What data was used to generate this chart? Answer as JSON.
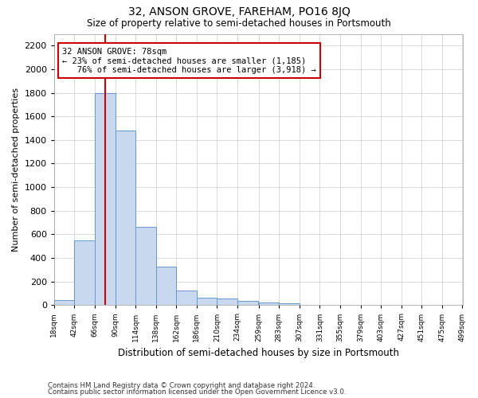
{
  "title": "32, ANSON GROVE, FAREHAM, PO16 8JQ",
  "subtitle": "Size of property relative to semi-detached houses in Portsmouth",
  "xlabel": "Distribution of semi-detached houses by size in Portsmouth",
  "ylabel": "Number of semi-detached properties",
  "footnote1": "Contains HM Land Registry data © Crown copyright and database right 2024.",
  "footnote2": "Contains public sector information licensed under the Open Government Licence v3.0.",
  "property_label": "32 ANSON GROVE: 78sqm",
  "smaller_pct": "23%",
  "smaller_count": "1,185",
  "larger_pct": "76%",
  "larger_count": "3,918",
  "property_size_sqm": 78,
  "bin_starts": [
    18,
    42,
    66,
    90,
    114,
    138,
    162,
    186,
    210,
    234,
    259,
    283,
    307,
    331,
    355,
    379,
    403,
    427,
    451,
    475
  ],
  "bin_width": 24,
  "bar_heights": [
    40,
    550,
    1800,
    1480,
    660,
    325,
    120,
    65,
    55,
    35,
    20,
    15,
    5,
    5,
    2,
    2,
    2,
    2,
    1,
    1
  ],
  "bar_color": "#c8d9ef",
  "bar_edge_color": "#6699cc",
  "marker_color": "#cc0000",
  "annotation_box_color": "#cc0000",
  "background_color": "#ffffff",
  "grid_color": "#cccccc",
  "ylim": [
    0,
    2300
  ],
  "yticks": [
    0,
    200,
    400,
    600,
    800,
    1000,
    1200,
    1400,
    1600,
    1800,
    2000,
    2200
  ],
  "xlim_start": 18,
  "xlim_end": 499
}
